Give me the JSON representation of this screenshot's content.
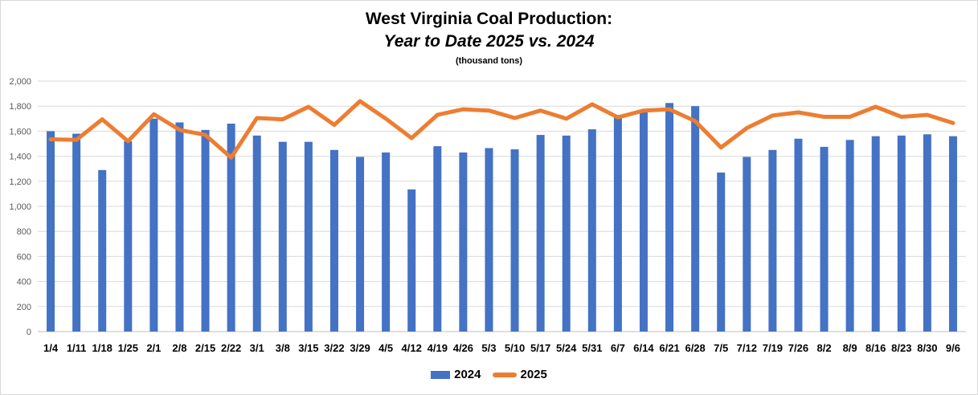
{
  "title_line1": "West Virginia Coal Production:",
  "title_line2": "Year to Date 2025 vs. 2024",
  "subtitle": "(thousand tons)",
  "chart_data": {
    "type": "bar",
    "title": "West Virginia Coal Production: Year to Date 2025 vs. 2024",
    "subtitle": "(thousand tons)",
    "categories": [
      "1/4",
      "1/11",
      "1/18",
      "1/25",
      "2/1",
      "2/8",
      "2/15",
      "2/22",
      "3/1",
      "3/8",
      "3/15",
      "3/22",
      "3/29",
      "4/5",
      "4/12",
      "4/19",
      "4/26",
      "5/3",
      "5/10",
      "5/17",
      "5/24",
      "5/31",
      "6/7",
      "6/14",
      "6/21",
      "6/28",
      "7/5",
      "7/12",
      "7/19",
      "7/26",
      "8/2",
      "8/9",
      "8/16",
      "8/23",
      "8/30",
      "9/6"
    ],
    "ylim": [
      0,
      2000
    ],
    "yticks": [
      0,
      200,
      400,
      600,
      800,
      1000,
      1200,
      1400,
      1600,
      1800,
      2000
    ],
    "ytick_labels": [
      "0",
      "200",
      "400",
      "600",
      "800",
      "1,000",
      "1,200",
      "1,400",
      "1,600",
      "1,800",
      "2,000"
    ],
    "grid": true,
    "legend_position": "bottom",
    "series": [
      {
        "name": "2024",
        "type": "bar",
        "color": "#4472c4",
        "values": [
          1600,
          1580,
          1290,
          1520,
          1700,
          1670,
          1610,
          1660,
          1565,
          1515,
          1515,
          1450,
          1395,
          1430,
          1135,
          1480,
          1430,
          1465,
          1455,
          1570,
          1565,
          1615,
          1730,
          1770,
          1825,
          1800,
          1270,
          1395,
          1450,
          1540,
          1475,
          1530,
          1560,
          1565,
          1575,
          1560
        ]
      },
      {
        "name": "2025",
        "type": "line",
        "color": "#ed7d31",
        "values": [
          1535,
          1530,
          1695,
          1520,
          1735,
          1610,
          1570,
          1390,
          1705,
          1695,
          1795,
          1650,
          1840,
          1700,
          1545,
          1730,
          1775,
          1765,
          1705,
          1765,
          1700,
          1815,
          1710,
          1765,
          1775,
          1680,
          1470,
          1625,
          1725,
          1750,
          1715,
          1715,
          1795,
          1715,
          1730,
          1665
        ]
      }
    ]
  }
}
